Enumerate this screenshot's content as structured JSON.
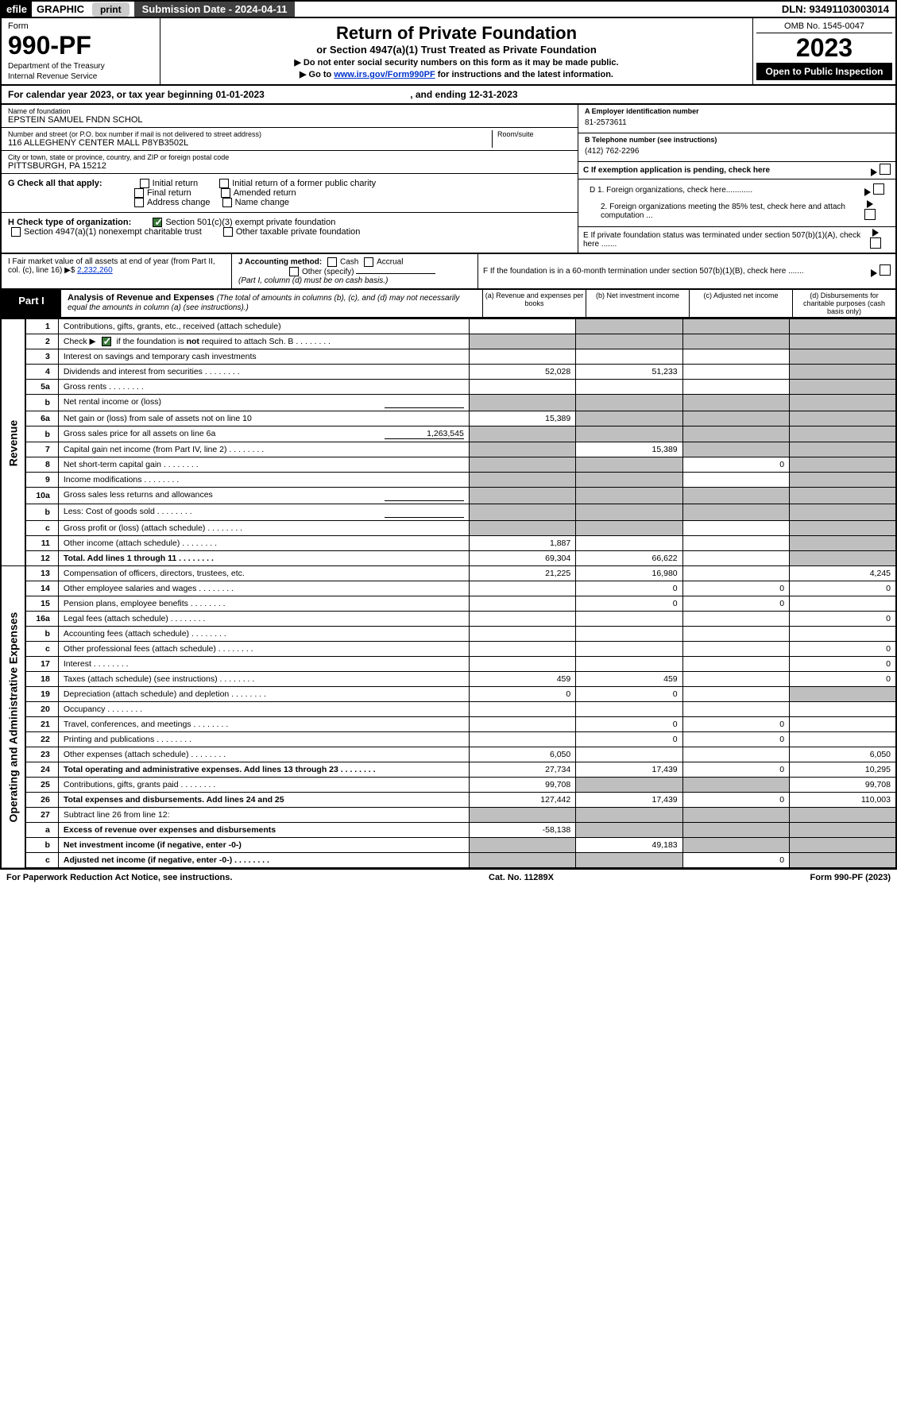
{
  "top_bar": {
    "efile": "efile",
    "graphic": "GRAPHIC",
    "print": "print",
    "sub_date_label": "Submission Date - 2024-04-11",
    "dln": "DLN: 93491103003014"
  },
  "header": {
    "form_label": "Form",
    "form_number": "990-PF",
    "dept1": "Department of the Treasury",
    "dept2": "Internal Revenue Service",
    "title": "Return of Private Foundation",
    "subtitle": "or Section 4947(a)(1) Trust Treated as Private Foundation",
    "instr1": "▶ Do not enter social security numbers on this form as it may be made public.",
    "instr2_pre": "▶ Go to ",
    "instr2_link": "www.irs.gov/Form990PF",
    "instr2_post": " for instructions and the latest information.",
    "omb": "OMB No. 1545-0047",
    "tax_year": "2023",
    "open": "Open to Public Inspection"
  },
  "cal_year": {
    "text_pre": "For calendar year 2023, or tax year beginning ",
    "begin": "01-01-2023",
    "text_mid": " , and ending ",
    "end": "12-31-2023"
  },
  "foundation": {
    "name_label": "Name of foundation",
    "name": "EPSTEIN SAMUEL FNDN SCHOL",
    "addr_label": "Number and street (or P.O. box number if mail is not delivered to street address)",
    "addr": "116 ALLEGHENY CENTER MALL P8YB3502L",
    "room_label": "Room/suite",
    "city_label": "City or town, state or province, country, and ZIP or foreign postal code",
    "city": "PITTSBURGH, PA  15212",
    "a_label": "A Employer identification number",
    "a_val": "81-2573611",
    "b_label": "B Telephone number (see instructions)",
    "b_val": "(412) 762-2296",
    "c_label": "C If exemption application is pending, check here"
  },
  "checks": {
    "g_label": "G Check all that apply:",
    "g_opts": [
      "Initial return",
      "Initial return of a former public charity",
      "Final return",
      "Amended return",
      "Address change",
      "Name change"
    ],
    "h_label": "H Check type of organization:",
    "h_opt1": "Section 501(c)(3) exempt private foundation",
    "h_opt2": "Section 4947(a)(1) nonexempt charitable trust",
    "h_opt3": "Other taxable private foundation",
    "i_label": "I Fair market value of all assets at end of year (from Part II, col. (c), line 16) ▶$ ",
    "i_val": "2,232,260",
    "j_label": "J Accounting method:",
    "j_opts": [
      "Cash",
      "Accrual"
    ],
    "j_other": "Other (specify)",
    "j_note": "(Part I, column (d) must be on cash basis.)",
    "d1": "D 1. Foreign organizations, check here............",
    "d2": "2. Foreign organizations meeting the 85% test, check here and attach computation ...",
    "e": "E  If private foundation status was terminated under section 507(b)(1)(A), check here .......",
    "f": "F  If the foundation is in a 60-month termination under section 507(b)(1)(B), check here .......",
    "d_label": "D"
  },
  "part1": {
    "label": "Part I",
    "title": "Analysis of Revenue and Expenses",
    "note": " (The total of amounts in columns (b), (c), and (d) may not necessarily equal the amounts in column (a) (see instructions).)",
    "col_a": "(a) Revenue and expenses per books",
    "col_b": "(b) Net investment income",
    "col_c": "(c) Adjusted net income",
    "col_d": "(d) Disbursements for charitable purposes (cash basis only)"
  },
  "side_labels": {
    "revenue": "Revenue",
    "expenses": "Operating and Administrative Expenses"
  },
  "rows": [
    {
      "n": "1",
      "d": "Contributions, gifts, grants, etc., received (attach schedule)",
      "a": "",
      "b": "shade",
      "c": "shade",
      "dd": "shade"
    },
    {
      "n": "2",
      "d": "Check ▶ [✓] if the foundation is not required to attach Sch. B",
      "a": "shade",
      "b": "shade",
      "c": "shade",
      "dd": "shade",
      "hascheck": true,
      "dots": true
    },
    {
      "n": "3",
      "d": "Interest on savings and temporary cash investments",
      "a": "",
      "b": "",
      "c": "",
      "dd": "shade"
    },
    {
      "n": "4",
      "d": "Dividends and interest from securities",
      "a": "52,028",
      "b": "51,233",
      "c": "",
      "dd": "shade",
      "dots": true
    },
    {
      "n": "5a",
      "d": "Gross rents",
      "a": "",
      "b": "",
      "c": "",
      "dd": "shade",
      "dots": true
    },
    {
      "n": "b",
      "d": "Net rental income or (loss)",
      "a": "shade",
      "b": "shade",
      "c": "shade",
      "dd": "shade",
      "underline": true
    },
    {
      "n": "6a",
      "d": "Net gain or (loss) from sale of assets not on line 10",
      "a": "15,389",
      "b": "shade",
      "c": "shade",
      "dd": "shade"
    },
    {
      "n": "b",
      "d": "Gross sales price for all assets on line 6a",
      "a": "shade",
      "b": "shade",
      "c": "shade",
      "dd": "shade",
      "inline_val": "1,263,545"
    },
    {
      "n": "7",
      "d": "Capital gain net income (from Part IV, line 2)",
      "a": "shade",
      "b": "15,389",
      "c": "shade",
      "dd": "shade",
      "dots": true
    },
    {
      "n": "8",
      "d": "Net short-term capital gain",
      "a": "shade",
      "b": "shade",
      "c": "0",
      "dd": "shade",
      "dots": true
    },
    {
      "n": "9",
      "d": "Income modifications",
      "a": "shade",
      "b": "shade",
      "c": "",
      "dd": "shade",
      "dots": true
    },
    {
      "n": "10a",
      "d": "Gross sales less returns and allowances",
      "a": "shade",
      "b": "shade",
      "c": "shade",
      "dd": "shade",
      "underline": true
    },
    {
      "n": "b",
      "d": "Less: Cost of goods sold",
      "a": "shade",
      "b": "shade",
      "c": "shade",
      "dd": "shade",
      "dots": true,
      "underline": true
    },
    {
      "n": "c",
      "d": "Gross profit or (loss) (attach schedule)",
      "a": "shade",
      "b": "shade",
      "c": "",
      "dd": "shade",
      "dots": true
    },
    {
      "n": "11",
      "d": "Other income (attach schedule)",
      "a": "1,887",
      "b": "",
      "c": "",
      "dd": "shade",
      "dots": true
    },
    {
      "n": "12",
      "d": "Total. Add lines 1 through 11",
      "a": "69,304",
      "b": "66,622",
      "c": "",
      "dd": "shade",
      "bold": true,
      "dots": true
    },
    {
      "n": "13",
      "d": "Compensation of officers, directors, trustees, etc.",
      "a": "21,225",
      "b": "16,980",
      "c": "",
      "dd": "4,245"
    },
    {
      "n": "14",
      "d": "Other employee salaries and wages",
      "a": "",
      "b": "0",
      "c": "0",
      "dd": "0",
      "dots": true
    },
    {
      "n": "15",
      "d": "Pension plans, employee benefits",
      "a": "",
      "b": "0",
      "c": "0",
      "dd": "",
      "dots": true
    },
    {
      "n": "16a",
      "d": "Legal fees (attach schedule)",
      "a": "",
      "b": "",
      "c": "",
      "dd": "0",
      "dots": true
    },
    {
      "n": "b",
      "d": "Accounting fees (attach schedule)",
      "a": "",
      "b": "",
      "c": "",
      "dd": "",
      "dots": true
    },
    {
      "n": "c",
      "d": "Other professional fees (attach schedule)",
      "a": "",
      "b": "",
      "c": "",
      "dd": "0",
      "dots": true
    },
    {
      "n": "17",
      "d": "Interest",
      "a": "",
      "b": "",
      "c": "",
      "dd": "0",
      "dots": true
    },
    {
      "n": "18",
      "d": "Taxes (attach schedule) (see instructions)",
      "a": "459",
      "b": "459",
      "c": "",
      "dd": "0",
      "dots": true
    },
    {
      "n": "19",
      "d": "Depreciation (attach schedule) and depletion",
      "a": "0",
      "b": "0",
      "c": "",
      "dd": "shade",
      "dots": true
    },
    {
      "n": "20",
      "d": "Occupancy",
      "a": "",
      "b": "",
      "c": "",
      "dd": "",
      "dots": true
    },
    {
      "n": "21",
      "d": "Travel, conferences, and meetings",
      "a": "",
      "b": "0",
      "c": "0",
      "dd": "",
      "dots": true
    },
    {
      "n": "22",
      "d": "Printing and publications",
      "a": "",
      "b": "0",
      "c": "0",
      "dd": "",
      "dots": true
    },
    {
      "n": "23",
      "d": "Other expenses (attach schedule)",
      "a": "6,050",
      "b": "",
      "c": "",
      "dd": "6,050",
      "dots": true
    },
    {
      "n": "24",
      "d": "Total operating and administrative expenses. Add lines 13 through 23",
      "a": "27,734",
      "b": "17,439",
      "c": "0",
      "dd": "10,295",
      "bold": true,
      "dots": true
    },
    {
      "n": "25",
      "d": "Contributions, gifts, grants paid",
      "a": "99,708",
      "b": "shade",
      "c": "shade",
      "dd": "99,708",
      "dots": true
    },
    {
      "n": "26",
      "d": "Total expenses and disbursements. Add lines 24 and 25",
      "a": "127,442",
      "b": "17,439",
      "c": "0",
      "dd": "110,003",
      "bold": true
    },
    {
      "n": "27",
      "d": "Subtract line 26 from line 12:",
      "a": "shade",
      "b": "shade",
      "c": "shade",
      "dd": "shade"
    },
    {
      "n": "a",
      "d": "Excess of revenue over expenses and disbursements",
      "a": "-58,138",
      "b": "shade",
      "c": "shade",
      "dd": "shade",
      "bold": true
    },
    {
      "n": "b",
      "d": "Net investment income (if negative, enter -0-)",
      "a": "shade",
      "b": "49,183",
      "c": "shade",
      "dd": "shade",
      "bold": true
    },
    {
      "n": "c",
      "d": "Adjusted net income (if negative, enter -0-)",
      "a": "shade",
      "b": "shade",
      "c": "0",
      "dd": "shade",
      "bold": true,
      "dots": true
    }
  ],
  "footer": {
    "left": "For Paperwork Reduction Act Notice, see instructions.",
    "mid": "Cat. No. 11289X",
    "right": "Form 990-PF (2023)"
  }
}
